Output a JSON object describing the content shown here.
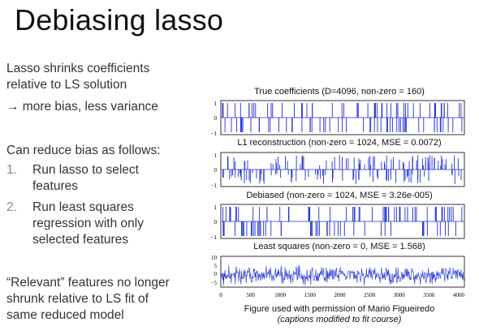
{
  "slide": {
    "title": "Debiasing lasso",
    "bullets": {
      "intro_line1": "Lasso shrinks coefficients",
      "intro_line2": "relative to LS solution",
      "arrow_line": "→ more bias, less variance",
      "reduce_heading": "Can reduce bias as follows:",
      "step1_num": "1.",
      "step1_line1": "Run lasso to select",
      "step1_line2": "features",
      "step2_num": "2.",
      "step2_line1": "Run least squares",
      "step2_line2": "regression with only",
      "step2_line3": "selected features",
      "relevant_line1": "“Relevant” features no longer",
      "relevant_line2": "shrunk relative to LS fit of",
      "relevant_line3": "same reduced model"
    },
    "figure": {
      "credit_line1": "Figure used with permission of Mario Figueiredo",
      "credit_line2": "(captions modified to fit course)"
    }
  },
  "chart_data": [
    {
      "type": "line",
      "title": "True coefficients (D=4096, non-zero = 160)",
      "y_ticks": [
        "1",
        "0",
        "−1"
      ],
      "ylim": [
        -1,
        1
      ],
      "xlim": [
        0,
        4096
      ],
      "pattern": "sparse_spikes"
    },
    {
      "type": "line",
      "title": "L1 reconstruction (non-zero = 1024, MSE = 0.0072)",
      "y_ticks": [
        "1",
        "0",
        "−1"
      ],
      "ylim": [
        -1,
        1
      ],
      "xlim": [
        0,
        4096
      ],
      "pattern": "shrunk_spikes"
    },
    {
      "type": "line",
      "title": "Debiased (non-zero = 1024, MSE = 3.26e-005)",
      "y_ticks": [
        "1",
        "0",
        "−1"
      ],
      "ylim": [
        -1,
        1
      ],
      "xlim": [
        0,
        4096
      ],
      "pattern": "sparse_spikes"
    },
    {
      "type": "line",
      "title": "Least squares (non-zero = 0, MSE = 1.568)",
      "y_ticks": [
        "10",
        "5",
        "0",
        "−5"
      ],
      "ylim": [
        -8,
        10
      ],
      "xlim": [
        0,
        4096
      ],
      "pattern": "dense_noise",
      "x_ticks": [
        "0",
        "500",
        "1000",
        "1500",
        "2000",
        "2500",
        "3000",
        "3500",
        "4000"
      ]
    }
  ],
  "colors": {
    "signal": "#1f2fd6",
    "axis": "#000000"
  }
}
